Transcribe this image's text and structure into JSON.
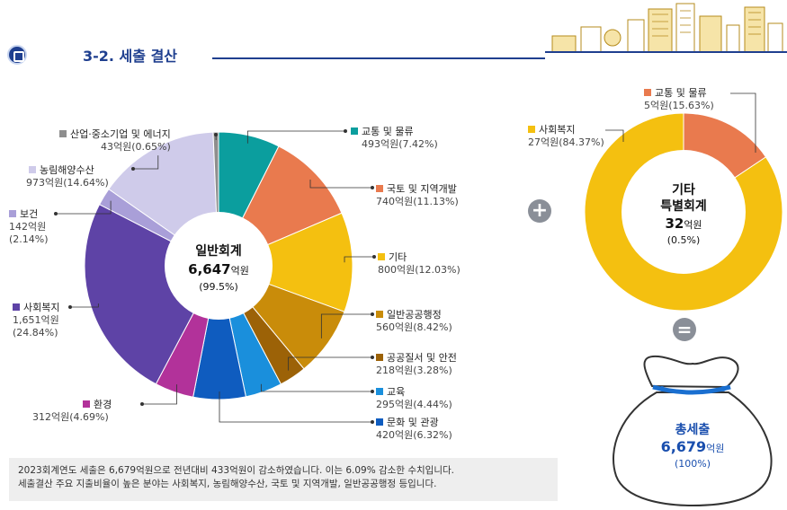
{
  "header": {
    "section_title": "3-2. 세출 결산"
  },
  "general": {
    "title": "일반회계",
    "amount": "6,647",
    "unit": "억원",
    "pct": "(99.5%)"
  },
  "special": {
    "title1": "기타",
    "title2": "특별회계",
    "amount": "32",
    "unit": "억원",
    "pct": "(0.5%)"
  },
  "total": {
    "title": "총세출",
    "amount": "6,679",
    "unit": "억원",
    "pct": "(100%)"
  },
  "operators": {
    "plus": "+",
    "equals": "="
  },
  "note": {
    "line1": "2023회계연도 세출은 6,679억원으로 전년대비 433억원이 감소하였습니다. 이는 6.09% 감소한 수치입니다.",
    "line2": "세출결산 주요 지출비율이 높은 분야는 사회복지, 농림해양수산, 국토 및 지역개발, 일반공공행정 등입니다."
  },
  "chart_data": [
    {
      "type": "pie",
      "title": "일반회계",
      "unit": "억원",
      "slices": [
        {
          "name": "교통 및 물류",
          "value": 493,
          "pct": 7.42,
          "value_label": "493억원(7.42%)",
          "color": "#0b9e9e"
        },
        {
          "name": "국토 및 지역개발",
          "value": 740,
          "pct": 11.13,
          "value_label": "740억원(11.13%)",
          "color": "#e97a4e"
        },
        {
          "name": "기타",
          "value": 800,
          "pct": 12.03,
          "value_label": "800억원(12.03%)",
          "color": "#f4c010"
        },
        {
          "name": "일반공공행정",
          "value": 560,
          "pct": 8.42,
          "value_label": "560억원(8.42%)",
          "color": "#c98c0a"
        },
        {
          "name": "공공질서 및 안전",
          "value": 218,
          "pct": 3.28,
          "value_label": "218억원(3.28%)",
          "color": "#9c6207"
        },
        {
          "name": "교육",
          "value": 295,
          "pct": 4.44,
          "value_label": "295억원(4.44%)",
          "color": "#1a8fdc"
        },
        {
          "name": "문화 및 관광",
          "value": 420,
          "pct": 6.32,
          "value_label": "420억원(6.32%)",
          "color": "#0f5cbf"
        },
        {
          "name": "환경",
          "value": 312,
          "pct": 4.69,
          "value_label": "312억원(4.69%)",
          "color": "#b2329a"
        },
        {
          "name": "사회복지",
          "value": 1651,
          "pct": 24.84,
          "value_label": "1,651억원",
          "pct_label": "(24.84%)",
          "color": "#5e43a6"
        },
        {
          "name": "보건",
          "value": 142,
          "pct": 2.14,
          "value_label": "142억원",
          "pct_label": "(2.14%)",
          "color": "#a99fd8"
        },
        {
          "name": "농림해양수산",
          "value": 973,
          "pct": 14.64,
          "value_label": "973억원(14.64%)",
          "color": "#cfcbea"
        },
        {
          "name": "산업·중소기업 및 에너지",
          "value": 43,
          "pct": 0.65,
          "value_label": "43억원(0.65%)",
          "color": "#8e8e8e"
        }
      ]
    },
    {
      "type": "pie",
      "title": "기타 특별회계",
      "unit": "억원",
      "slices": [
        {
          "name": "교통 및 물류",
          "value": 5,
          "pct": 15.63,
          "value_label": "5억원(15.63%)",
          "color": "#e97a4e"
        },
        {
          "name": "사회복지",
          "value": 27,
          "pct": 84.37,
          "value_label": "27억원(84.37%)",
          "color": "#f4c010"
        }
      ]
    }
  ]
}
